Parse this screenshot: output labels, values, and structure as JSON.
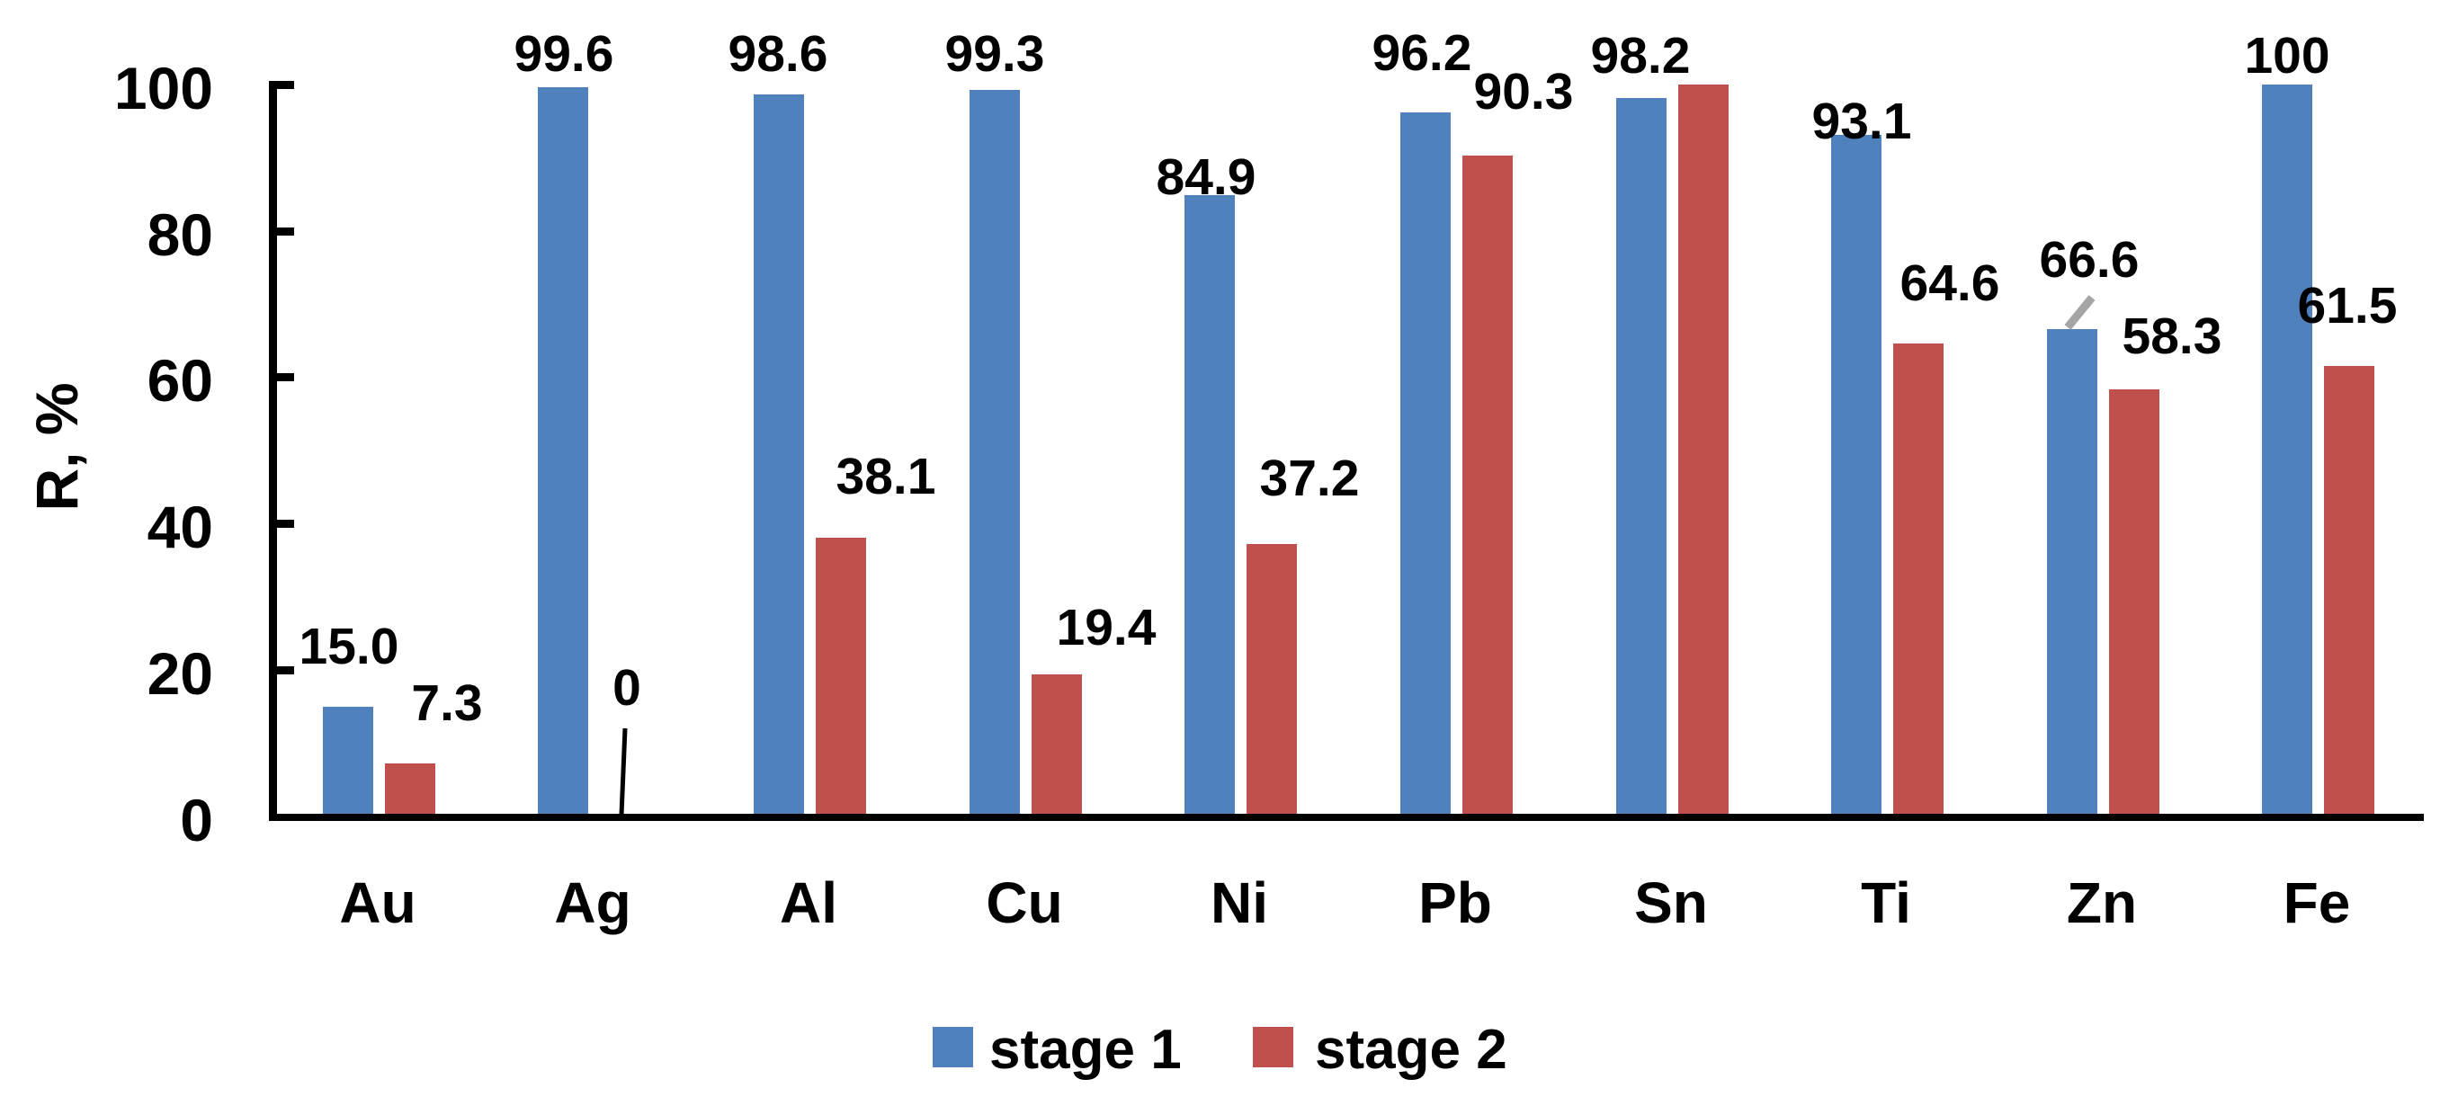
{
  "chart_data": {
    "type": "bar",
    "title": "",
    "ylabel": "R, %",
    "xlabel": "",
    "ylim": [
      0,
      100
    ],
    "yticks": [
      "0",
      "20",
      "40",
      "60",
      "80",
      "100"
    ],
    "grid": false,
    "legend_position": "bottom",
    "categories": [
      "Au",
      "Ag",
      "Al",
      "Cu",
      "Ni",
      "Pb",
      "Sn",
      "Ti",
      "Zn",
      "Fe"
    ],
    "series": [
      {
        "name": "stage 1",
        "color": "#4F81BD",
        "values": [
          15.0,
          99.6,
          98.6,
          99.3,
          84.9,
          96.2,
          98.2,
          93.1,
          66.6,
          100
        ],
        "labels": [
          "15.0",
          "99.6",
          "98.6",
          "99.3",
          "84.9",
          "96.2",
          "98.2",
          "93.1",
          "66.6",
          "100"
        ]
      },
      {
        "name": "stage 2",
        "color": "#C0504D",
        "values": [
          7.3,
          0,
          38.1,
          19.4,
          37.2,
          90.3,
          100,
          64.6,
          58.3,
          61.5
        ],
        "labels": [
          "7.3",
          "0",
          "38.1",
          "19.4",
          "37.2",
          "90.3",
          "",
          "64.6",
          "58.3",
          "61.5"
        ]
      }
    ],
    "annotation_colors": {
      "zero_leader": "#000000",
      "zn_leader": "#A5A5A5"
    }
  }
}
